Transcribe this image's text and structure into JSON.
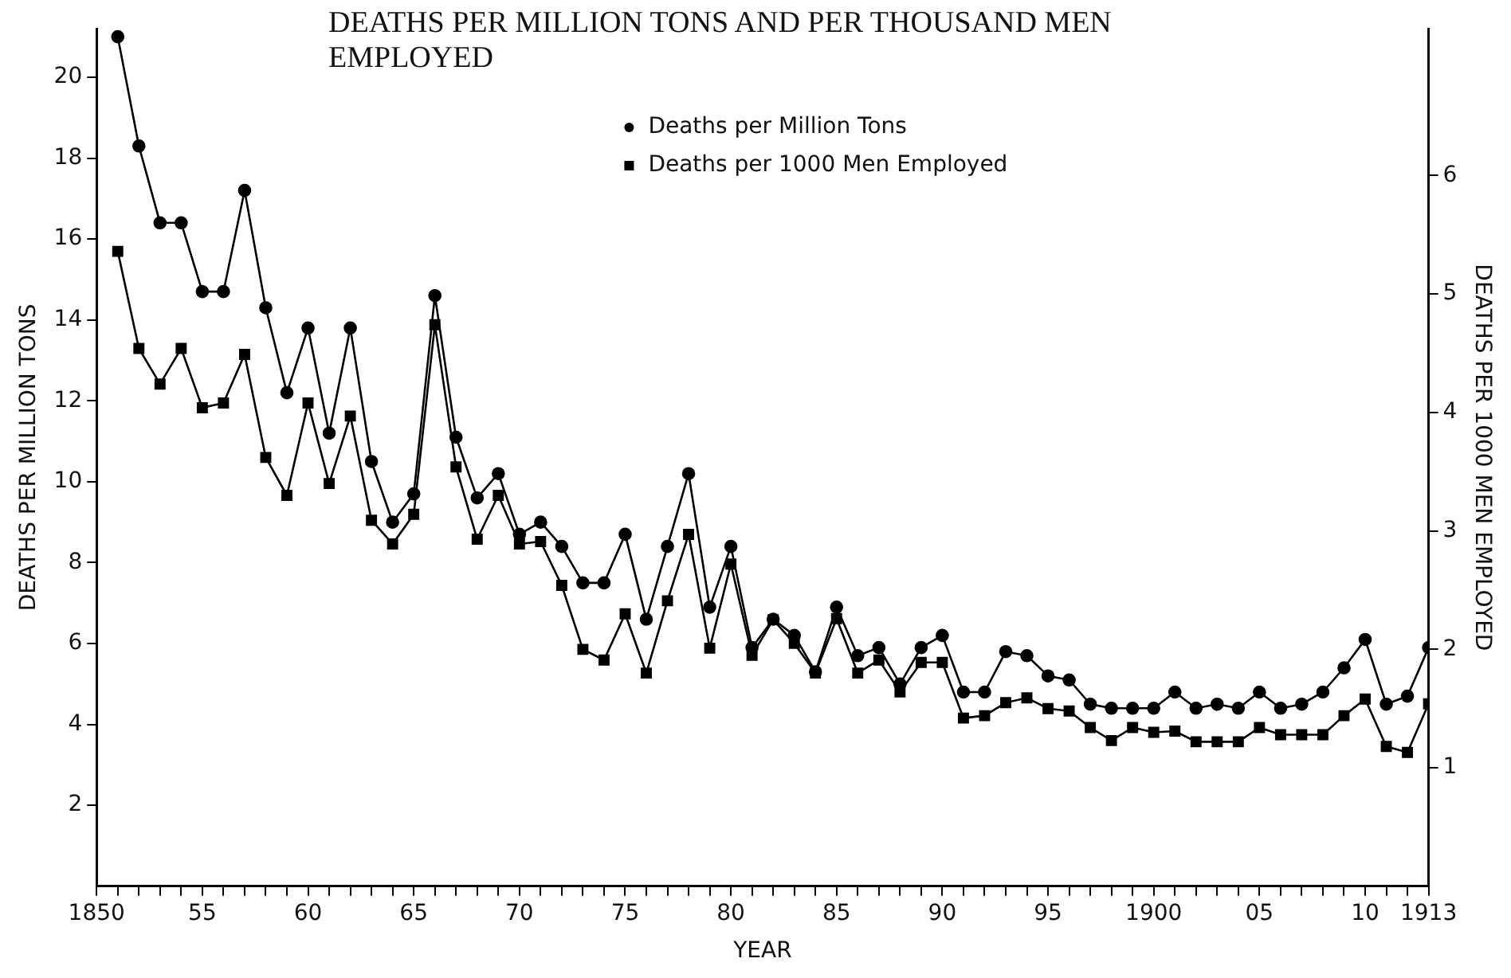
{
  "chart_data": {
    "type": "line",
    "title": "DEATHS PER MILLION TONS AND PER THOUSAND MEN EMPLOYED",
    "xlabel": "YEAR",
    "ylabel": "DEATHS PER MILLION TONS",
    "y2label": "DEATHS PER 1000 MEN EMPLOYED",
    "x": [
      1851,
      1852,
      1853,
      1854,
      1855,
      1856,
      1857,
      1858,
      1859,
      1860,
      1861,
      1862,
      1863,
      1864,
      1865,
      1866,
      1867,
      1868,
      1869,
      1870,
      1871,
      1872,
      1873,
      1874,
      1875,
      1876,
      1877,
      1878,
      1879,
      1880,
      1881,
      1882,
      1883,
      1884,
      1885,
      1886,
      1887,
      1888,
      1889,
      1890,
      1891,
      1892,
      1893,
      1894,
      1895,
      1896,
      1897,
      1898,
      1899,
      1900,
      1901,
      1902,
      1903,
      1904,
      1905,
      1906,
      1907,
      1908,
      1909,
      1910,
      1911,
      1912,
      1913
    ],
    "series": [
      {
        "name": "Deaths per Million Tons",
        "color": "#000000",
        "marker": "circle",
        "values": [
          21.0,
          18.3,
          16.4,
          16.4,
          14.7,
          14.7,
          17.2,
          14.3,
          12.2,
          13.8,
          11.2,
          13.8,
          10.5,
          9.0,
          9.7,
          14.6,
          11.1,
          9.6,
          10.2,
          8.7,
          9.0,
          8.4,
          7.5,
          7.5,
          8.7,
          6.6,
          8.4,
          10.2,
          6.9,
          8.4,
          5.9,
          6.6,
          6.2,
          5.3,
          6.9,
          5.7,
          5.9,
          5.0,
          5.9,
          6.2,
          4.8,
          4.8,
          5.8,
          5.7,
          5.2,
          5.1,
          4.5,
          4.4,
          4.4,
          4.4,
          4.8,
          4.4,
          4.5,
          4.4,
          4.8,
          4.4,
          4.5,
          4.8,
          5.4,
          6.1,
          4.5,
          4.7,
          5.9
        ]
      },
      {
        "name": "Deaths per 1000 Men Employed",
        "color": "#000000",
        "marker": "square",
        "axis": "y2",
        "values": [
          5.36,
          4.54,
          4.24,
          4.54,
          4.04,
          4.08,
          4.49,
          3.62,
          3.3,
          4.08,
          3.4,
          3.97,
          3.09,
          2.89,
          3.14,
          4.74,
          3.54,
          2.93,
          3.3,
          2.89,
          2.91,
          2.54,
          2.0,
          1.91,
          2.3,
          1.8,
          2.41,
          2.97,
          2.01,
          2.72,
          1.95,
          2.25,
          2.05,
          1.8,
          2.26,
          1.8,
          1.91,
          1.64,
          1.89,
          1.89,
          1.42,
          1.44,
          1.55,
          1.59,
          1.5,
          1.48,
          1.34,
          1.23,
          1.34,
          1.3,
          1.31,
          1.22,
          1.22,
          1.22,
          1.34,
          1.28,
          1.28,
          1.28,
          1.44,
          1.58,
          1.18,
          1.13,
          1.54
        ]
      }
    ],
    "xlim": [
      1850,
      1913
    ],
    "xticks": [
      1850,
      {
        "value": 1851,
        "label": null
      },
      {
        "value": 1852,
        "label": null
      },
      {
        "value": 1853,
        "label": null
      },
      {
        "value": 1854,
        "label": null
      },
      {
        "value": 1855,
        "label": "55"
      },
      {
        "value": 1856,
        "label": null
      },
      {
        "value": 1857,
        "label": null
      },
      {
        "value": 1858,
        "label": null
      },
      {
        "value": 1859,
        "label": null
      },
      {
        "value": 1860,
        "label": "60"
      },
      {
        "value": 1861,
        "label": null
      },
      {
        "value": 1862,
        "label": null
      },
      {
        "value": 1863,
        "label": null
      },
      {
        "value": 1864,
        "label": null
      },
      {
        "value": 1865,
        "label": "65"
      },
      {
        "value": 1866,
        "label": null
      },
      {
        "value": 1867,
        "label": null
      },
      {
        "value": 1868,
        "label": null
      },
      {
        "value": 1869,
        "label": null
      },
      {
        "value": 1870,
        "label": "70"
      },
      {
        "value": 1871,
        "label": null
      },
      {
        "value": 1872,
        "label": null
      },
      {
        "value": 1873,
        "label": null
      },
      {
        "value": 1874,
        "label": null
      },
      {
        "value": 1875,
        "label": "75"
      },
      {
        "value": 1876,
        "label": null
      },
      {
        "value": 1877,
        "label": null
      },
      {
        "value": 1878,
        "label": null
      },
      {
        "value": 1879,
        "label": null
      },
      {
        "value": 1880,
        "label": "80"
      },
      {
        "value": 1881,
        "label": null
      },
      {
        "value": 1882,
        "label": null
      },
      {
        "value": 1883,
        "label": null
      },
      {
        "value": 1884,
        "label": null
      },
      {
        "value": 1885,
        "label": "85"
      },
      {
        "value": 1886,
        "label": null
      },
      {
        "value": 1887,
        "label": null
      },
      {
        "value": 1888,
        "label": null
      },
      {
        "value": 1889,
        "label": null
      },
      {
        "value": 1890,
        "label": "90"
      },
      {
        "value": 1891,
        "label": null
      },
      {
        "value": 1892,
        "label": null
      },
      {
        "value": 1893,
        "label": null
      },
      {
        "value": 1894,
        "label": null
      },
      {
        "value": 1895,
        "label": "95"
      },
      {
        "value": 1896,
        "label": null
      },
      {
        "value": 1897,
        "label": null
      },
      {
        "value": 1898,
        "label": null
      },
      {
        "value": 1899,
        "label": null
      },
      1900,
      {
        "value": 1901,
        "label": null
      },
      {
        "value": 1902,
        "label": null
      },
      {
        "value": 1903,
        "label": null
      },
      {
        "value": 1904,
        "label": null
      },
      {
        "value": 1905,
        "label": "05"
      },
      {
        "value": 1906,
        "label": null
      },
      {
        "value": 1907,
        "label": null
      },
      {
        "value": 1908,
        "label": null
      },
      {
        "value": 1909,
        "label": null
      },
      {
        "value": 1910,
        "label": "10"
      },
      {
        "value": 1911,
        "label": null
      },
      {
        "value": 1912,
        "label": null
      },
      1913
    ],
    "ylim": [
      0,
      21.2
    ],
    "yticks": [
      2,
      4,
      6,
      8,
      10,
      12,
      14,
      16,
      18,
      20
    ],
    "y2lim": [
      0,
      7.24
    ],
    "y2ticks": [
      1,
      2,
      3,
      4,
      5,
      6
    ],
    "grid": false,
    "legend": "top",
    "line_style": "solid"
  }
}
